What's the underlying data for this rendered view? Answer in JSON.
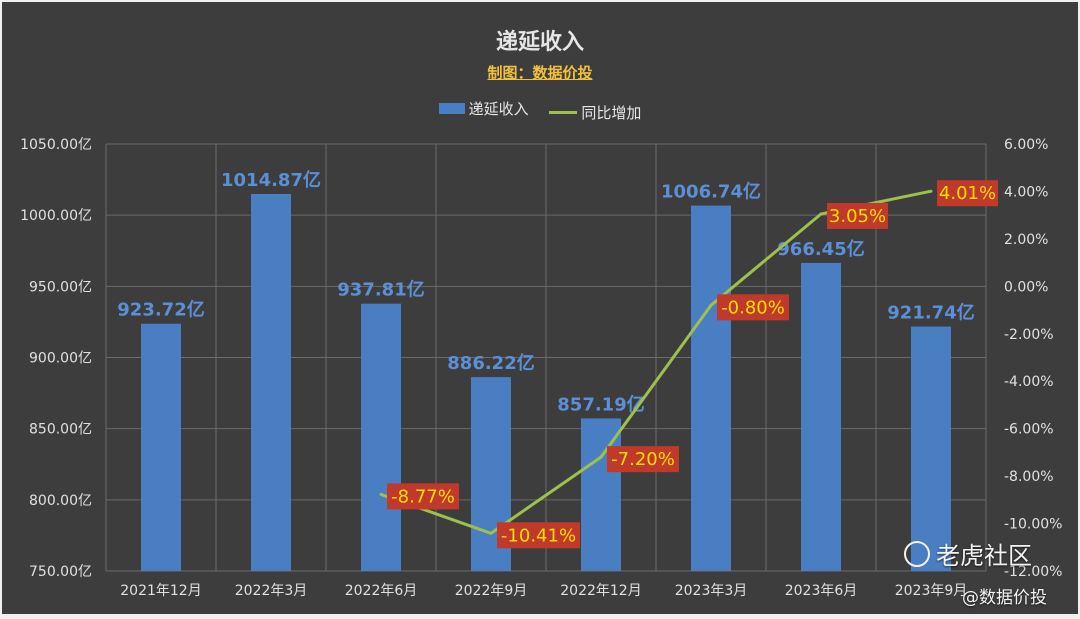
{
  "chart_data": {
    "type": "bar+line",
    "title": "递延收入",
    "subtitle": "制图：数据价投",
    "categories": [
      "2021年12月",
      "2022年3月",
      "2022年6月",
      "2022年9月",
      "2022年12月",
      "2023年3月",
      "2023年6月",
      "2023年9月"
    ],
    "series": [
      {
        "name": "递延收入",
        "type": "bar",
        "axis": "left",
        "values": [
          923.72,
          1014.87,
          937.81,
          886.22,
          857.19,
          1006.74,
          966.45,
          921.74
        ],
        "labels": [
          "923.72亿",
          "1014.87亿",
          "937.81亿",
          "886.22亿",
          "857.19亿",
          "1006.74亿",
          "966.45亿",
          "921.74亿"
        ],
        "color": "#4a7ec2"
      },
      {
        "name": "同比增加",
        "type": "line",
        "axis": "right",
        "values": [
          null,
          null,
          -8.77,
          -10.41,
          -7.2,
          -0.8,
          3.05,
          4.01
        ],
        "labels": [
          null,
          null,
          "-8.77%",
          "-10.41%",
          "-7.20%",
          "-0.80%",
          "3.05%",
          "4.01%"
        ],
        "color": "#9dc14a"
      }
    ],
    "y_left": {
      "range": [
        750,
        1050
      ],
      "ticks": [
        750,
        800,
        850,
        900,
        950,
        1000,
        1050
      ],
      "tick_labels": [
        "750.00亿",
        "800.00亿",
        "850.00亿",
        "900.00亿",
        "950.00亿",
        "1000.00亿",
        "1050.00亿"
      ]
    },
    "y_right": {
      "range": [
        -12,
        6
      ],
      "ticks": [
        -12,
        -10,
        -8,
        -6,
        -4,
        -2,
        0,
        2,
        4,
        6
      ],
      "tick_labels": [
        "-12.00%",
        "-10.00%",
        "-8.00%",
        "-6.00%",
        "-4.00%",
        "-2.00%",
        "0.00%",
        "2.00%",
        "4.00%",
        "6.00%"
      ]
    },
    "grid": true,
    "legend": "top-center",
    "colors": {
      "background": "#3d3d3d",
      "bar": "#4a7ec2",
      "bar_label": "#5b8fd6",
      "line": "#9dc14a",
      "line_label_bg": "#c0392b",
      "line_label_text": "#ffe000",
      "axis_text": "#e0e0e0",
      "grid": "#6a6a6a"
    }
  },
  "watermark": {
    "text": "老虎社区",
    "credit": "@数据价投"
  }
}
